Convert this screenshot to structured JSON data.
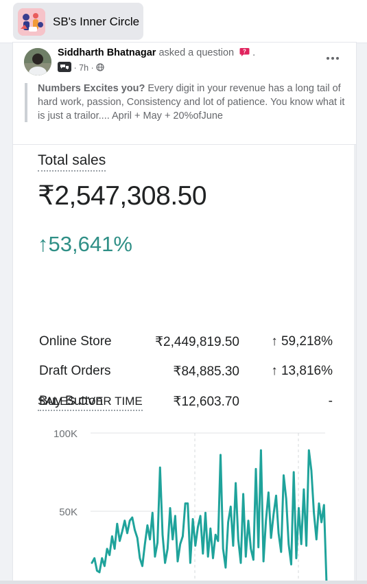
{
  "group": {
    "name": "SB's Inner Circle"
  },
  "post": {
    "author": "Siddharth Bhatnagar",
    "action": "asked a question",
    "time": "7h",
    "more_icon": "more-horizontal-icon",
    "text_bold": "Numbers Excites you?",
    "text_body": "Every digit in your revenue has a long tail of hard work, passion, Consistency and lot of patience. You know what it is just a trailor.... April + May + 20%ofJune"
  },
  "report": {
    "total_label": "Total sales",
    "total_value": "₹2,547,308.50",
    "growth": "53,641%",
    "rows": [
      {
        "name": "Online Store",
        "amount": "₹2,449,819.50",
        "pct": "59,218%"
      },
      {
        "name": "Draft Orders",
        "amount": "₹84,885.30",
        "pct": "13,816%"
      },
      {
        "name": "Buy Button",
        "amount": "₹12,603.70",
        "pct": "-"
      }
    ],
    "sales_over_time_label": "SALES OVER TIME"
  },
  "colors": {
    "accent": "#2f8f86",
    "line": "#1fa39b"
  },
  "chart_data": {
    "type": "line",
    "title": "SALES OVER TIME",
    "yticks": [
      "100K",
      "50K"
    ],
    "ylim": [
      0,
      100000
    ],
    "grid": true,
    "series": [
      {
        "values": [
          17000,
          20000,
          12000,
          11000,
          20000,
          15000,
          26000,
          22000,
          34000,
          26000,
          42000,
          31000,
          37000,
          44000,
          36000,
          44000,
          46000,
          38000,
          33000,
          20000,
          15000,
          29000,
          41000,
          32000,
          49000,
          21000,
          30000,
          78000,
          35000,
          17000,
          26000,
          52000,
          32000,
          47000,
          18000,
          29000,
          34000,
          55000,
          55000,
          17000,
          45000,
          28000,
          40000,
          47000,
          23000,
          49000,
          21000,
          39000,
          20000,
          35000,
          31000,
          86000,
          26000,
          14000,
          43000,
          53000,
          28000,
          68000,
          32000,
          17000,
          61000,
          21000,
          44000,
          26000,
          19000,
          77000,
          27000,
          89000,
          18000,
          44000,
          62000,
          33000,
          48000,
          60000,
          36000,
          24000,
          73000,
          58000,
          29000,
          16000,
          75000,
          20000,
          52000,
          29000,
          64000,
          28000,
          89000,
          76000,
          49000,
          32000,
          55000,
          43000,
          54000,
          4000
        ]
      }
    ]
  }
}
